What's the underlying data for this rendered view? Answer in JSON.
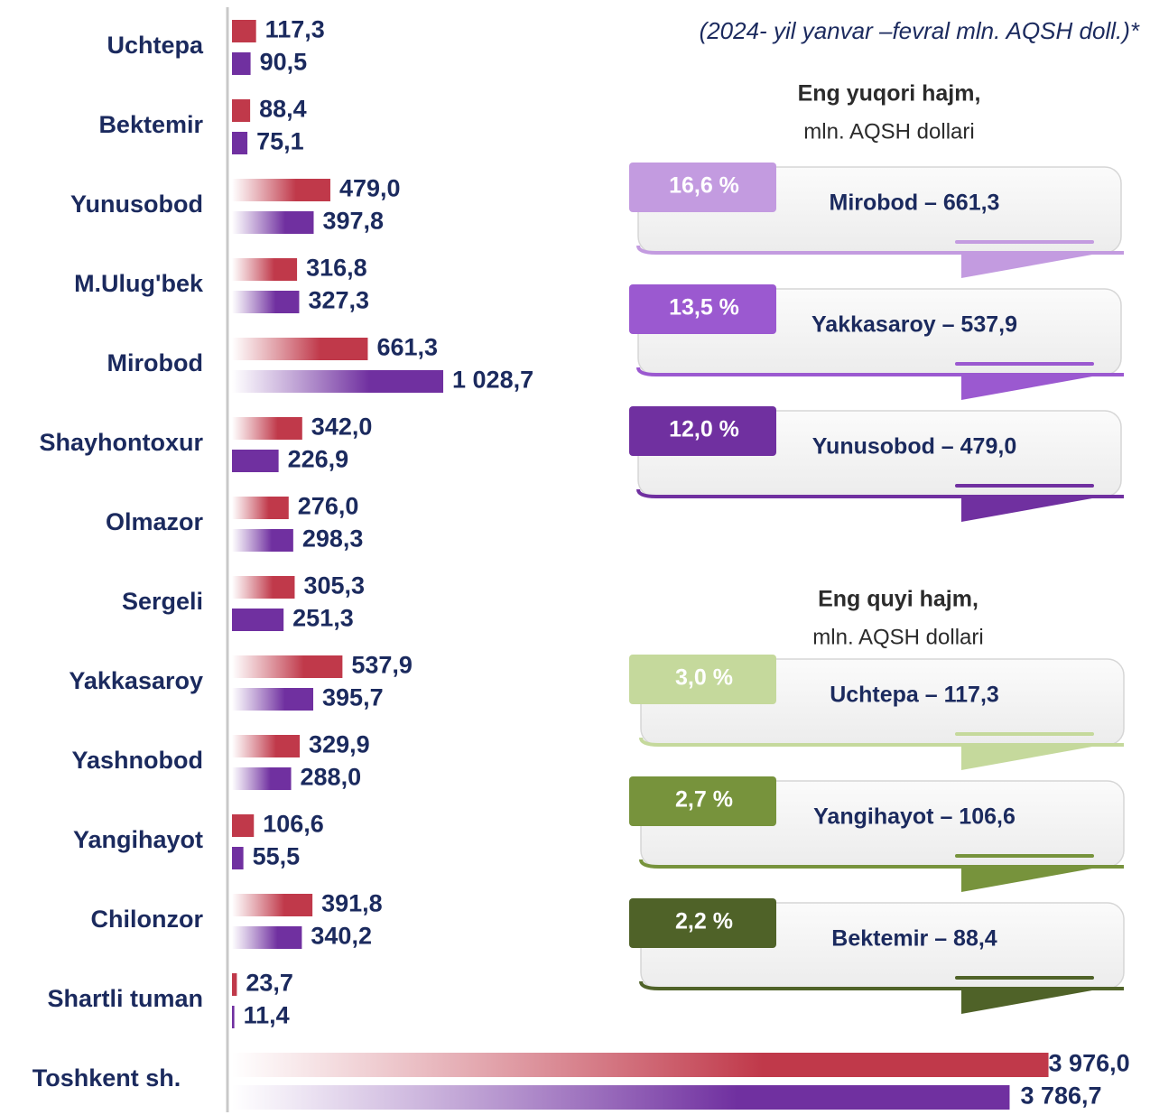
{
  "chart_data": {
    "type": "bar",
    "orientation": "horizontal",
    "title": "(2024- yil yanvar –fevral mln. AQSH doll.)*",
    "categories": [
      "Uchtepa",
      "Bektemir",
      "Yunusobod",
      "M.Ulug'bek",
      "Mirobod",
      "Shayhontoxur",
      "Olmazor",
      "Sergeli",
      "Yakkasaroy",
      "Yashnobod",
      "Yangihayot",
      "Chilonzor",
      "Shartli tuman",
      "Toshkent sh."
    ],
    "series": [
      {
        "color": "#c0394a",
        "values": [
          117.3,
          88.4,
          479.0,
          316.8,
          661.3,
          342.0,
          276.0,
          305.3,
          537.9,
          329.9,
          106.6,
          391.8,
          23.7,
          3976.0
        ],
        "value_labels": [
          "117,3",
          "88,4",
          "479,0",
          "316,8",
          "661,3",
          "342,0",
          "276,0",
          "305,3",
          "537,9",
          "329,9",
          "106,6",
          "391,8",
          "23,7",
          "3 976,0"
        ]
      },
      {
        "color": "#7030a0",
        "values": [
          90.5,
          75.1,
          397.8,
          327.3,
          1028.7,
          226.9,
          298.3,
          251.3,
          395.7,
          288.0,
          55.5,
          340.2,
          11.4,
          3786.7
        ],
        "value_labels": [
          "90,5",
          "75,1",
          "397,8",
          "327,3",
          "1 028,7",
          "226,9",
          "298,3",
          "251,3",
          "395,7",
          "288,0",
          "55,5",
          "340,2",
          "11,4",
          "3 786,7"
        ]
      }
    ],
    "xlim": [
      0,
      4000
    ]
  },
  "panels": [
    {
      "title": "Eng yuqori hajm,",
      "subtitle": "mln. AQSH dollari",
      "items": [
        {
          "percent": "16,6 %",
          "text": "Mirobod – 661,3",
          "color": "#c39be0"
        },
        {
          "percent": "13,5 %",
          "text": "Yakkasaroy – 537,9",
          "color": "#9b59d0"
        },
        {
          "percent": "12,0 %",
          "text": "Yunusobod – 479,0",
          "color": "#7030a0"
        }
      ]
    },
    {
      "title": "Eng quyi hajm,",
      "subtitle": "mln. AQSH dollari",
      "items": [
        {
          "percent": "3,0 %",
          "text": "Uchtepa – 117,3",
          "color": "#c5d99c"
        },
        {
          "percent": "2,7 %",
          "text": "Yangihayot – 106,6",
          "color": "#77933c"
        },
        {
          "percent": "2,2 %",
          "text": "Bektemir – 88,4",
          "color": "#4f6228"
        }
      ]
    }
  ]
}
